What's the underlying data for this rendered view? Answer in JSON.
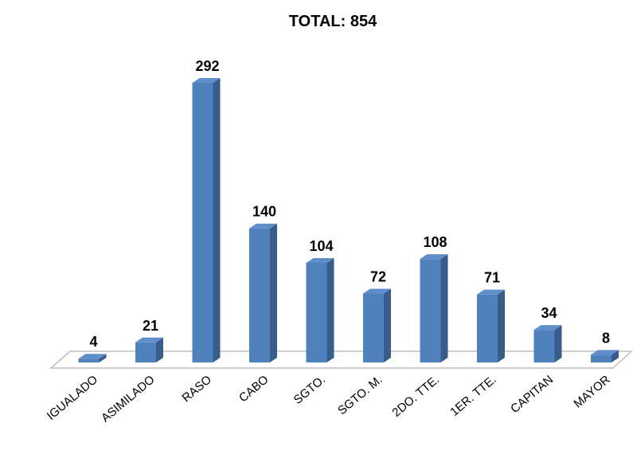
{
  "chart_data": {
    "type": "bar",
    "title": "TOTAL: 854",
    "xlabel": "",
    "ylabel": "",
    "grid": false,
    "legend": "none",
    "ylim": [
      0,
      292
    ],
    "categories": [
      "IGUALADO",
      "ASIMILADO",
      "RASO",
      "CABO",
      "SGTO.",
      "SGTO. M.",
      "2DO. TTE.",
      "1ER. TTE.",
      "CAPITAN",
      "MAYOR"
    ],
    "series": [
      {
        "values": [
          4,
          21,
          292,
          140,
          104,
          72,
          108,
          71,
          34,
          8
        ]
      }
    ],
    "colors": {
      "bar_front": "#4f81bd",
      "bar_side": "#385d8a",
      "bar_top": "#5f8fca",
      "floor": "#bfbfbf"
    }
  }
}
